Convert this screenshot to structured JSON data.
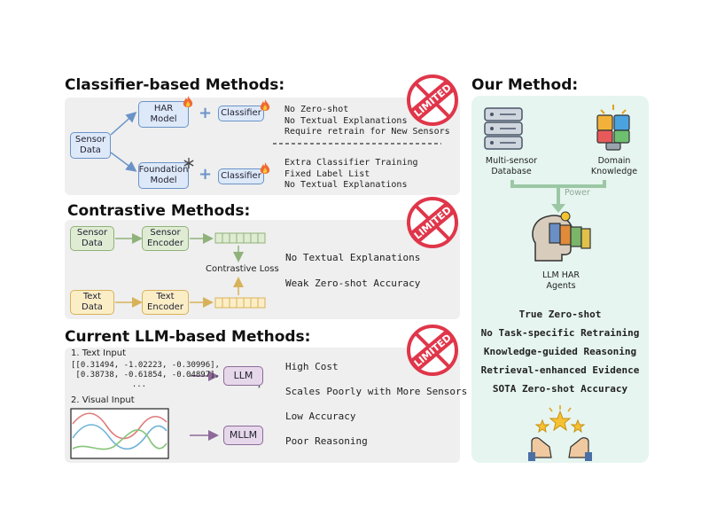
{
  "classifier": {
    "heading": "Classifier-based Methods:",
    "sensor_data": "Sensor\nData",
    "har_model": "HAR\nModel",
    "foundation_model": "Foundation\nModel",
    "classifier": "Classifier",
    "notes_top": [
      "No Zero-shot",
      "No Textual Explanations",
      "Require retrain for New Sensors"
    ],
    "notes_bottom": [
      "Extra Classifier Training",
      "Fixed Label List",
      "No Textual Explanations"
    ]
  },
  "contrastive": {
    "heading": "Contrastive Methods:",
    "sensor_data": "Sensor\nData",
    "sensor_encoder": "Sensor\nEncoder",
    "text_data": "Text\nData",
    "text_encoder": "Text\nEncoder",
    "loss": "Contrastive Loss",
    "notes": [
      "No Textual Explanations",
      "Weak Zero-shot Accuracy"
    ]
  },
  "llm": {
    "heading": "Current LLM-based Methods:",
    "text_input_label": "1. Text Input",
    "matrix_lines": [
      "[[0.31494, -1.02223, -0.30996],",
      " [0.38738, -0.61854, -0.04897],",
      "  ...                       ]"
    ],
    "visual_input_label": "2. Visual Input",
    "llm_box": "LLM",
    "mllm_box": "MLLM",
    "notes": [
      "High Cost",
      "Scales Poorly with More Sensors",
      "Low Accuracy",
      "Poor Reasoning"
    ]
  },
  "our_method": {
    "heading": "Our Method:",
    "database_label": "Multi-sensor\nDatabase",
    "knowledge_label": "Domain\nKnowledge",
    "power_label": "Power",
    "agents_label": "LLM HAR\nAgents",
    "features": [
      "True Zero-shot",
      "No Task-specific Retraining",
      "Knowledge-guided Reasoning",
      "Retrieval-enhanced Evidence",
      "SOTA Zero-shot Accuracy"
    ]
  },
  "stamp_text": "LIMITED",
  "colors": {
    "panel_gray": "#efefef",
    "panel_mint": "#e6f5ef",
    "stamp_red": "#e0364a",
    "blue_box": "#dde9f8",
    "green_box": "#dfecd3",
    "yellow_box": "#fbeec7",
    "purple_box": "#e6d8ea"
  },
  "icons": [
    "fire-icon",
    "snowflake-icon",
    "database-icon",
    "brain-puzzle-icon",
    "head-books-icon",
    "stars-hands-icon",
    "prohibited-stamp-icon"
  ]
}
